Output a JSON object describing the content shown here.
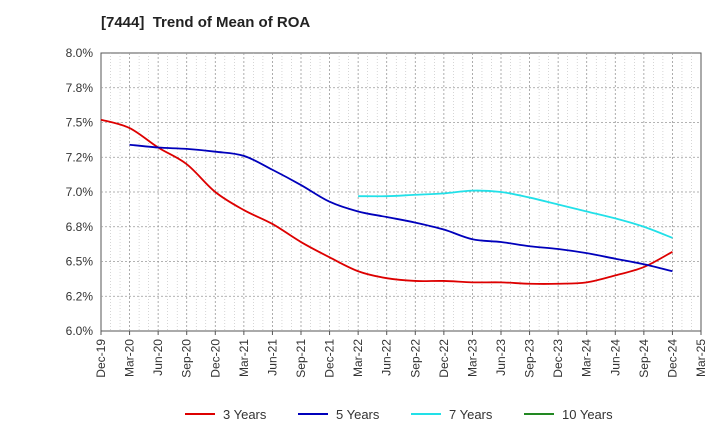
{
  "chart_data": {
    "type": "line",
    "title": "[7444]  Trend of Mean of ROA",
    "xlabel": "",
    "ylabel": "",
    "x_ticks": [
      "Dec-19",
      "Mar-20",
      "Jun-20",
      "Sep-20",
      "Dec-20",
      "Mar-21",
      "Jun-21",
      "Sep-21",
      "Dec-21",
      "Mar-22",
      "Jun-22",
      "Sep-22",
      "Dec-22",
      "Mar-23",
      "Jun-23",
      "Sep-23",
      "Dec-23",
      "Mar-24",
      "Jun-24",
      "Sep-24",
      "Dec-24",
      "Mar-25"
    ],
    "y_ticks": [
      "8.0%",
      "7.8%",
      "7.5%",
      "7.2%",
      "7.0%",
      "6.8%",
      "6.5%",
      "6.2%",
      "6.0%"
    ],
    "ylim": [
      6.0,
      8.0
    ],
    "grid": true,
    "legend_position": "bottom",
    "series": [
      {
        "name": "3 Years",
        "color": "#dd0000",
        "points": [
          [
            "Dec-19",
            7.52
          ],
          [
            "Mar-20",
            7.46
          ],
          [
            "Jun-20",
            7.32
          ],
          [
            "Sep-20",
            7.2
          ],
          [
            "Dec-20",
            7.0
          ],
          [
            "Mar-21",
            6.87
          ],
          [
            "Jun-21",
            6.77
          ],
          [
            "Sep-21",
            6.64
          ],
          [
            "Dec-21",
            6.53
          ],
          [
            "Mar-22",
            6.43
          ],
          [
            "Jun-22",
            6.38
          ],
          [
            "Sep-22",
            6.36
          ],
          [
            "Dec-22",
            6.36
          ],
          [
            "Mar-23",
            6.35
          ],
          [
            "Jun-23",
            6.35
          ],
          [
            "Sep-23",
            6.34
          ],
          [
            "Dec-23",
            6.34
          ],
          [
            "Mar-24",
            6.35
          ],
          [
            "Jun-24",
            6.4
          ],
          [
            "Sep-24",
            6.46
          ],
          [
            "Dec-24",
            6.57
          ]
        ]
      },
      {
        "name": "5 Years",
        "color": "#0000bb",
        "points": [
          [
            "Mar-20",
            7.34
          ],
          [
            "Jun-20",
            7.32
          ],
          [
            "Sep-20",
            7.31
          ],
          [
            "Dec-20",
            7.29
          ],
          [
            "Mar-21",
            7.26
          ],
          [
            "Jun-21",
            7.16
          ],
          [
            "Sep-21",
            7.05
          ],
          [
            "Dec-21",
            6.93
          ],
          [
            "Mar-22",
            6.86
          ],
          [
            "Jun-22",
            6.82
          ],
          [
            "Sep-22",
            6.78
          ],
          [
            "Dec-22",
            6.73
          ],
          [
            "Mar-23",
            6.66
          ],
          [
            "Jun-23",
            6.64
          ],
          [
            "Sep-23",
            6.61
          ],
          [
            "Dec-23",
            6.59
          ],
          [
            "Mar-24",
            6.56
          ],
          [
            "Jun-24",
            6.52
          ],
          [
            "Sep-24",
            6.48
          ],
          [
            "Dec-24",
            6.43
          ]
        ]
      },
      {
        "name": "7 Years",
        "color": "#22e0e8",
        "points": [
          [
            "Mar-22",
            6.97
          ],
          [
            "Jun-22",
            6.97
          ],
          [
            "Sep-22",
            6.98
          ],
          [
            "Dec-22",
            6.99
          ],
          [
            "Mar-23",
            7.01
          ],
          [
            "Jun-23",
            7.0
          ],
          [
            "Sep-23",
            6.96
          ],
          [
            "Dec-23",
            6.91
          ],
          [
            "Mar-24",
            6.86
          ],
          [
            "Jun-24",
            6.81
          ],
          [
            "Sep-24",
            6.75
          ],
          [
            "Dec-24",
            6.67
          ]
        ]
      },
      {
        "name": "10 Years",
        "color": "#228822",
        "points": []
      }
    ]
  }
}
